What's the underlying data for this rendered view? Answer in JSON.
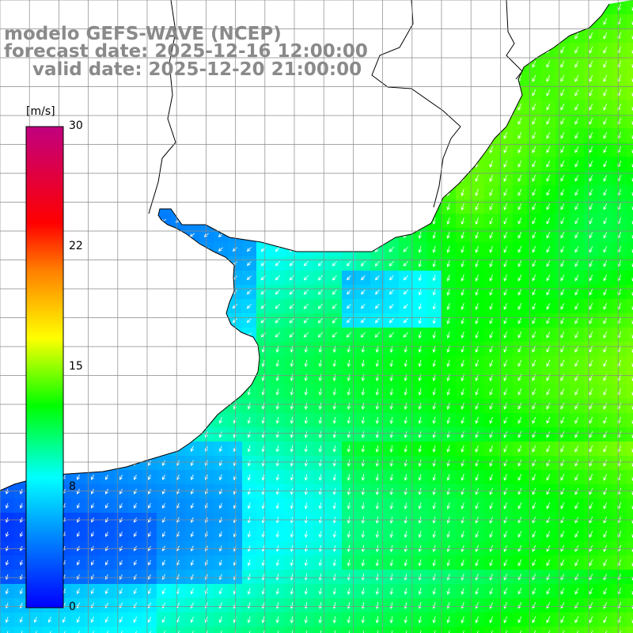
{
  "title": {
    "line1": "modelo GEFS-WAVE (NCEP)",
    "line2": "forecast date: 2025-12-16 12:00:00",
    "line3": "valid date: 2025-12-20 21:00:00"
  },
  "colorbar": {
    "unit": "[m/s]",
    "min": 0,
    "max": 30,
    "ticks": [
      {
        "label": "30",
        "value": 30
      },
      {
        "label": "22",
        "value": 22.5
      },
      {
        "label": "15",
        "value": 15
      },
      {
        "label": "8",
        "value": 7.5
      },
      {
        "label": "0",
        "value": 0
      }
    ],
    "stops": [
      "#0000ff",
      "#0080ff",
      "#00ffff",
      "#00ff00",
      "#ffff00",
      "#ff8000",
      "#ff0000",
      "#c00080"
    ]
  },
  "map": {
    "variable": "wind speed and direction",
    "ocean_color": "#00e0ff",
    "land_color": "#ffffff",
    "grid_color": "#888888",
    "coast_color": "#000000",
    "arrow_color": "#ffffff"
  }
}
